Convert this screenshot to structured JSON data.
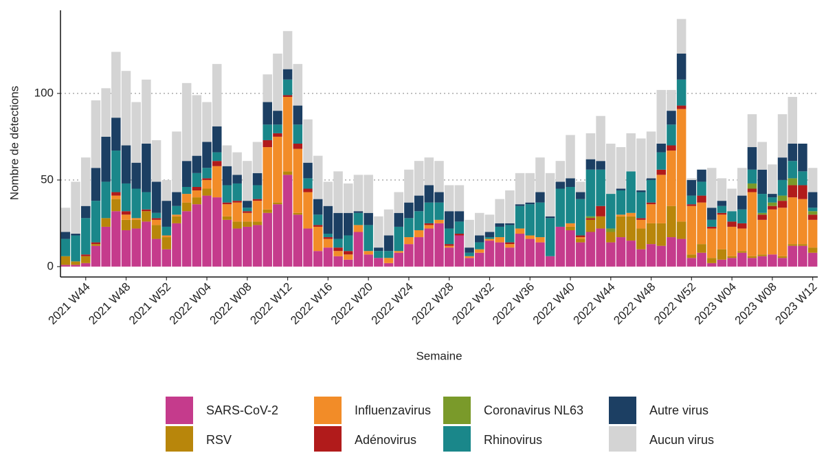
{
  "chart_data": {
    "type": "stacked_bar",
    "x_label": "Semaine",
    "y_label": "Nombre de détections",
    "categories": [
      null,
      null,
      "2021 W44",
      null,
      null,
      null,
      "2021 W48",
      null,
      null,
      null,
      "2021 W52",
      null,
      null,
      null,
      "2022 W04",
      null,
      null,
      null,
      "2022 W08",
      null,
      null,
      null,
      "2022 W12",
      null,
      null,
      null,
      "2022 W16",
      null,
      null,
      null,
      "2022 W20",
      null,
      null,
      null,
      "2022 W24",
      null,
      null,
      null,
      "2022 W28",
      null,
      null,
      null,
      "2022 W32",
      null,
      null,
      null,
      "2022 W36",
      null,
      null,
      null,
      "2022 W40",
      null,
      null,
      null,
      "2022 W44",
      null,
      null,
      null,
      "2022 W48",
      null,
      null,
      null,
      "2022 W52",
      null,
      null,
      null,
      "2023 W04",
      null,
      null,
      null,
      "2023 W08",
      null,
      null,
      null,
      "2023 W12"
    ],
    "series": [
      {
        "name": "SARS-CoV-2",
        "color": "#c53b8c",
        "values": [
          1,
          1,
          2,
          12,
          23,
          32,
          21,
          22,
          26,
          16,
          10,
          25,
          32,
          36,
          41,
          40,
          27,
          22,
          23,
          24,
          31,
          36,
          53,
          30,
          22,
          9,
          11,
          6,
          4,
          20,
          7,
          5,
          2,
          8,
          13,
          17,
          22,
          25,
          11,
          18,
          5,
          8,
          15,
          14,
          11,
          19,
          16,
          14,
          6,
          23,
          21,
          14,
          20,
          22,
          14,
          17,
          15,
          10,
          13,
          12,
          17,
          16,
          5,
          8,
          2,
          4,
          5,
          8,
          5,
          6,
          7,
          5,
          12,
          12,
          8
        ]
      },
      {
        "name": "RSV",
        "color": "#b8860b",
        "values": [
          5,
          2,
          4,
          1,
          5,
          7,
          6,
          5,
          6,
          8,
          7,
          4,
          5,
          4,
          4,
          0,
          2,
          4,
          3,
          2,
          2,
          1,
          2,
          1,
          0,
          0,
          0,
          0,
          0,
          0,
          0,
          0,
          0,
          0,
          0,
          0,
          0,
          0,
          0,
          0,
          0,
          0,
          0,
          0,
          0,
          0,
          0,
          0,
          0,
          0,
          2,
          2,
          7,
          7,
          6,
          12,
          14,
          12,
          12,
          13,
          18,
          10,
          2,
          5,
          3,
          6,
          1,
          1,
          1,
          1,
          0,
          1,
          1,
          1,
          3
        ]
      },
      {
        "name": "Influenzavirus",
        "color": "#f28c28",
        "values": [
          0,
          0,
          0,
          0,
          0,
          2,
          3,
          1,
          0,
          3,
          1,
          1,
          5,
          4,
          5,
          18,
          7,
          11,
          5,
          12,
          36,
          38,
          43,
          37,
          21,
          14,
          5,
          3,
          3,
          4,
          2,
          0,
          3,
          1,
          4,
          4,
          2,
          2,
          1,
          0,
          1,
          2,
          1,
          3,
          2,
          3,
          2,
          3,
          0,
          0,
          2,
          1,
          0,
          0,
          0,
          1,
          2,
          5,
          11,
          28,
          32,
          65,
          28,
          24,
          17,
          20,
          17,
          13,
          37,
          20,
          26,
          28,
          27,
          26,
          16
        ]
      },
      {
        "name": "Adénovirus",
        "color": "#b11b1b",
        "values": [
          0,
          0,
          1,
          1,
          0,
          2,
          2,
          0,
          1,
          1,
          0,
          0,
          0,
          2,
          1,
          3,
          1,
          1,
          1,
          1,
          4,
          2,
          1,
          3,
          2,
          1,
          1,
          2,
          2,
          0,
          0,
          0,
          0,
          0,
          0,
          0,
          1,
          0,
          1,
          1,
          0,
          0,
          0,
          0,
          1,
          0,
          0,
          0,
          0,
          0,
          0,
          1,
          1,
          6,
          0,
          0,
          0,
          1,
          1,
          3,
          3,
          2,
          1,
          4,
          1,
          1,
          3,
          3,
          2,
          3,
          2,
          4,
          7,
          8,
          3
        ]
      },
      {
        "name": "Coronavirus NL63",
        "color": "#7a9a2a",
        "values": [
          0,
          0,
          0,
          0,
          0,
          0,
          0,
          0,
          0,
          0,
          0,
          0,
          0,
          0,
          0,
          0,
          0,
          0,
          0,
          0,
          0,
          0,
          0,
          0,
          0,
          0,
          0,
          0,
          0,
          0,
          0,
          0,
          0,
          0,
          0,
          0,
          0,
          0,
          0,
          0,
          0,
          0,
          0,
          0,
          0,
          0,
          0,
          0,
          0,
          0,
          0,
          0,
          1,
          0,
          2,
          0,
          0,
          0,
          0,
          0,
          0,
          0,
          0,
          0,
          0,
          0,
          0,
          0,
          3,
          1,
          2,
          3,
          4,
          0,
          2
        ]
      },
      {
        "name": "Rhinovirus",
        "color": "#1a878a",
        "values": [
          10,
          15,
          21,
          24,
          21,
          24,
          16,
          17,
          10,
          3,
          5,
          5,
          4,
          8,
          6,
          5,
          10,
          10,
          2,
          8,
          9,
          5,
          9,
          11,
          6,
          6,
          2,
          5,
          9,
          7,
          15,
          4,
          4,
          14,
          11,
          11,
          12,
          10,
          9,
          7,
          2,
          4,
          1,
          6,
          10,
          13,
          18,
          20,
          22,
          22,
          21,
          21,
          27,
          21,
          20,
          14,
          24,
          15,
          13,
          10,
          12,
          15,
          5,
          8,
          4,
          4,
          6,
          8,
          8,
          11,
          3,
          9,
          10,
          8,
          2
        ]
      },
      {
        "name": "Autre virus",
        "color": "#1c3f63",
        "values": [
          4,
          1,
          7,
          19,
          26,
          19,
          22,
          15,
          28,
          18,
          15,
          8,
          15,
          10,
          15,
          15,
          11,
          5,
          4,
          7,
          13,
          8,
          6,
          11,
          9,
          9,
          16,
          15,
          13,
          1,
          7,
          2,
          9,
          8,
          9,
          9,
          10,
          6,
          10,
          6,
          3,
          4,
          3,
          2,
          1,
          1,
          1,
          6,
          1,
          4,
          5,
          4,
          6,
          5,
          0,
          1,
          0,
          1,
          1,
          5,
          8,
          15,
          9,
          7,
          7,
          3,
          0,
          8,
          13,
          14,
          2,
          13,
          10,
          16,
          9
        ]
      },
      {
        "name": "Aucun virus",
        "color": "#d4d4d4",
        "values": [
          14,
          30,
          28,
          39,
          28,
          38,
          43,
          35,
          37,
          24,
          12,
          35,
          45,
          35,
          23,
          36,
          12,
          13,
          23,
          18,
          16,
          33,
          22,
          24,
          25,
          25,
          14,
          24,
          17,
          21,
          22,
          18,
          15,
          12,
          19,
          20,
          16,
          18,
          15,
          15,
          16,
          13,
          10,
          14,
          19,
          18,
          17,
          20,
          25,
          12,
          25,
          6,
          15,
          26,
          29,
          24,
          22,
          30,
          27,
          31,
          12,
          20,
          1,
          0,
          23,
          13,
          13,
          16,
          19,
          16,
          17,
          25,
          27,
          0,
          14
        ]
      }
    ],
    "ylim": [
      -6,
      148
    ],
    "yticks": [
      0,
      50,
      100
    ],
    "grid": true
  }
}
